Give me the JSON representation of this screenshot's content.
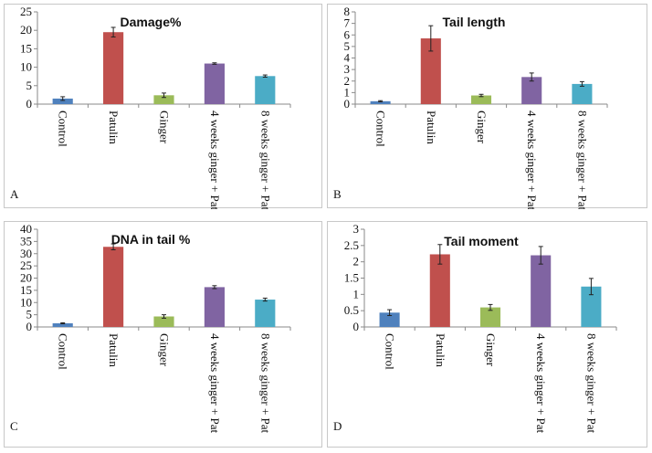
{
  "chart_data": [
    {
      "id": "A",
      "type": "bar",
      "title": "Damage%",
      "panel_label": "A",
      "categories": [
        "Control",
        "Patulin",
        "Ginger",
        "4 weeks ginger + Pat",
        "8 weeks ginger + Pat"
      ],
      "values": [
        1.5,
        19.5,
        2.4,
        11.0,
        7.6
      ],
      "errors": [
        0.5,
        1.3,
        0.6,
        0.2,
        0.3
      ],
      "colors": [
        "#4f81bd",
        "#c0504d",
        "#9bbb59",
        "#8064a2",
        "#4bacc6"
      ],
      "yticks": [
        "0",
        "5",
        "10",
        "15",
        "20",
        "25"
      ],
      "ylim": [
        0,
        25
      ],
      "xlabel": "",
      "ylabel": ""
    },
    {
      "id": "B",
      "type": "bar",
      "title": "Tail length",
      "panel_label": "B",
      "categories": [
        "Control",
        "Patulin",
        "Ginger",
        "4 weeks ginger + Pat",
        "8 weeks ginger + Pat"
      ],
      "values": [
        0.25,
        5.7,
        0.75,
        2.35,
        1.75
      ],
      "errors": [
        0.05,
        1.1,
        0.1,
        0.35,
        0.2
      ],
      "colors": [
        "#4f81bd",
        "#c0504d",
        "#9bbb59",
        "#8064a2",
        "#4bacc6"
      ],
      "yticks": [
        "0",
        "1",
        "2",
        "3",
        "4",
        "5",
        "6",
        "7",
        "8"
      ],
      "ylim": [
        0,
        8
      ],
      "xlabel": "",
      "ylabel": ""
    },
    {
      "id": "C",
      "type": "bar",
      "title": "DNA in tail %",
      "panel_label": "C",
      "categories": [
        "Control",
        "Patulin",
        "Ginger",
        "4 weeks ginger + Pat",
        "8 weeks ginger + Pat"
      ],
      "values": [
        1.5,
        32.8,
        4.3,
        16.3,
        11.2
      ],
      "errors": [
        0.2,
        1.2,
        0.7,
        0.6,
        0.6
      ],
      "colors": [
        "#4f81bd",
        "#c0504d",
        "#9bbb59",
        "#8064a2",
        "#4bacc6"
      ],
      "yticks": [
        "0",
        "5",
        "10",
        "15",
        "20",
        "25",
        "30",
        "35",
        "40"
      ],
      "ylim": [
        0,
        40
      ],
      "xlabel": "",
      "ylabel": ""
    },
    {
      "id": "D",
      "type": "bar",
      "title": "Tail moment",
      "panel_label": "D",
      "categories": [
        "Control",
        "Patulin",
        "Ginger",
        "4 weeks ginger + Pat",
        "8 weeks ginger + Pat"
      ],
      "values": [
        0.44,
        2.23,
        0.6,
        2.2,
        1.24
      ],
      "errors": [
        0.09,
        0.3,
        0.09,
        0.27,
        0.25
      ],
      "colors": [
        "#4f81bd",
        "#c0504d",
        "#9bbb59",
        "#8064a2",
        "#4bacc6"
      ],
      "yticks": [
        "0",
        "0.5",
        "1",
        "1.5",
        "2",
        "2.5",
        "3"
      ],
      "ylim": [
        0,
        3
      ],
      "xlabel": "",
      "ylabel": ""
    }
  ]
}
